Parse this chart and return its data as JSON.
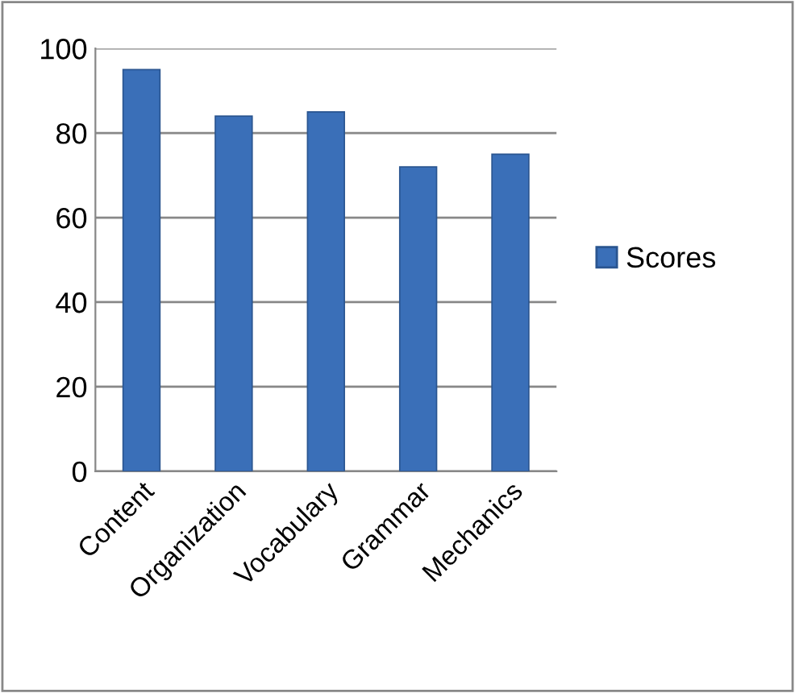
{
  "chart_data": {
    "type": "bar",
    "categories": [
      "Content",
      "Organization",
      "Vocabulary",
      "Grammar",
      "Mechanics"
    ],
    "series": [
      {
        "name": "Scores",
        "color": "#3a6fb8",
        "values": [
          95,
          84,
          85,
          72,
          75
        ]
      }
    ],
    "ylim": [
      0,
      100
    ],
    "yticks": [
      0,
      20,
      40,
      60,
      80,
      100
    ],
    "grid": "y",
    "legend": "right"
  }
}
